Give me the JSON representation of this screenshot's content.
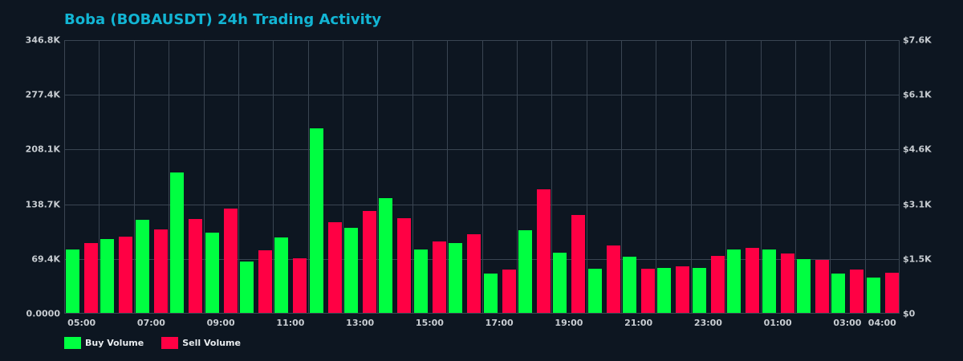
{
  "title": "Boba (BOBAUSDT) 24h Trading Activity",
  "colors": {
    "background": "#0d1621",
    "title": "#12b5d4",
    "buy": "#00ff41",
    "sell": "#ff0044",
    "grid": "#3a4552",
    "tick_text": "#c8cdd2"
  },
  "legend": {
    "items": [
      {
        "label": "Buy Volume",
        "color": "#00ff41"
      },
      {
        "label": "Sell Volume",
        "color": "#ff0044"
      }
    ]
  },
  "chart_data": {
    "type": "bar",
    "title": "Boba (BOBAUSDT) 24h Trading Activity",
    "xlabel": "",
    "ylabel": "",
    "ylim": [
      0,
      346800
    ],
    "y2lim": [
      0,
      7600
    ],
    "grid": true,
    "legend_position": "bottom-left",
    "categories": [
      "05:00",
      "06:00",
      "07:00",
      "08:00",
      "09:00",
      "10:00",
      "11:00",
      "12:00",
      "13:00",
      "14:00",
      "15:00",
      "16:00",
      "17:00",
      "18:00",
      "19:00",
      "20:00",
      "21:00",
      "22:00",
      "23:00",
      "00:00",
      "01:00",
      "02:00",
      "03:00",
      "04:00"
    ],
    "x_tick_labels": [
      "05:00",
      "07:00",
      "09:00",
      "11:00",
      "13:00",
      "15:00",
      "17:00",
      "19:00",
      "21:00",
      "23:00",
      "01:00",
      "03:00",
      "04:00"
    ],
    "y_tick_labels_left": [
      "0.0000",
      "69.4K",
      "138.7K",
      "208.1K",
      "277.4K",
      "346.8K"
    ],
    "y_tick_labels_right": [
      "$0",
      "$1.5K",
      "$3.1K",
      "$4.6K",
      "$6.1K",
      "$7.6K"
    ],
    "series": [
      {
        "name": "Buy Volume",
        "color": "#00ff41",
        "values": [
          80300,
          93600,
          118000,
          178000,
          101700,
          65100,
          95600,
          233900,
          107800,
          145400,
          80300,
          88500,
          49800,
          104800,
          76300,
          55900,
          71200,
          57000,
          57000,
          80300,
          80300,
          68100,
          49800,
          44800
        ]
      },
      {
        "name": "Sell Volume",
        "color": "#ff0044",
        "values": [
          88500,
          96600,
          105800,
          119000,
          132200,
          79300,
          69200,
          114900,
          129200,
          120000,
          90500,
          99700,
          54900,
          156600,
          124100,
          85400,
          55900,
          59000,
          72200,
          82400,
          75300,
          67100,
          54900,
          50900
        ]
      }
    ]
  }
}
